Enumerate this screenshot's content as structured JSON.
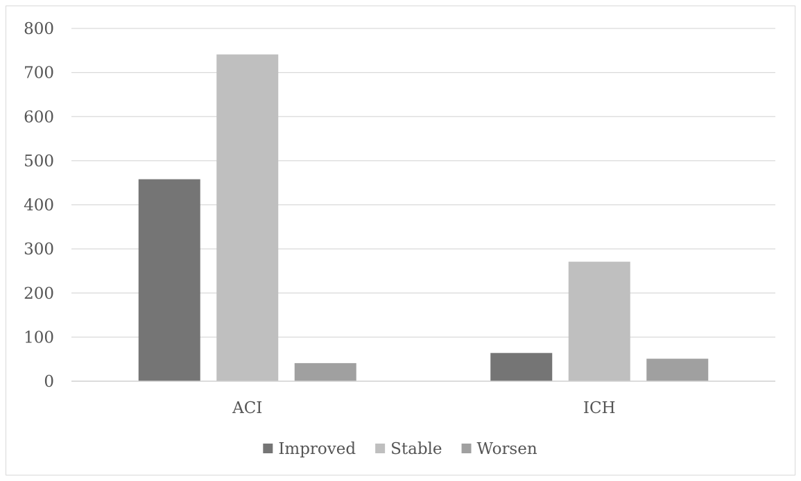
{
  "chart_data": {
    "type": "bar",
    "title": "",
    "xlabel": "",
    "ylabel": "",
    "categories": [
      "ACI",
      "ICH"
    ],
    "series": [
      {
        "name": "Improved",
        "values": [
          458,
          64
        ],
        "color": "#757575"
      },
      {
        "name": "Stable",
        "values": [
          741,
          271
        ],
        "color": "#bfbfbf"
      },
      {
        "name": "Worsen",
        "values": [
          41,
          51
        ],
        "color": "#a0a0a0"
      }
    ],
    "ylim": [
      0,
      800
    ],
    "yticks": [
      "0",
      "100",
      "200",
      "300",
      "400",
      "500",
      "600",
      "700",
      "800"
    ],
    "grid": true,
    "legend_position": "bottom"
  }
}
